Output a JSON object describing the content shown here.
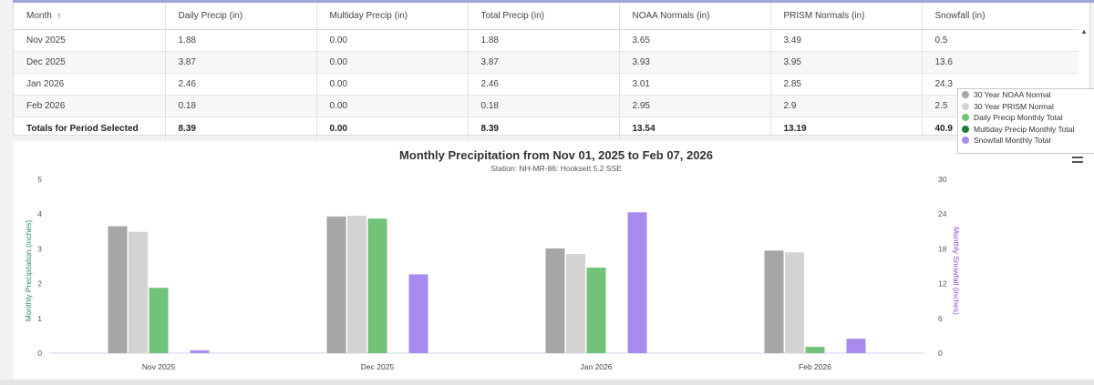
{
  "table": {
    "headers": [
      "Month",
      "Daily Precip (in)",
      "Multiday Precip (in)",
      "Total Precip (in)",
      "NOAA Normals (in)",
      "PRISM Normals (in)",
      "Snowfall (in)"
    ],
    "sort_indicator": "↑",
    "rows": [
      [
        "Nov 2025",
        "1.88",
        "0.00",
        "1.88",
        "3.65",
        "3.49",
        "0.5"
      ],
      [
        "Dec 2025",
        "3.87",
        "0.00",
        "3.87",
        "3.93",
        "3.95",
        "13.6"
      ],
      [
        "Jan 2026",
        "2.46",
        "0.00",
        "2.46",
        "3.01",
        "2.85",
        "24.3"
      ],
      [
        "Feb 2026",
        "0.18",
        "0.00",
        "0.18",
        "2.95",
        "2.9",
        "2.5"
      ]
    ],
    "totals": [
      "Totals for Period Selected",
      "8.39",
      "0.00",
      "8.39",
      "13.54",
      "13.19",
      "40.9"
    ]
  },
  "chart_data": {
    "type": "bar",
    "title": "Monthly Precipitation from Nov 01, 2025 to Feb 07, 2026",
    "subtitle": "Station: NH-MR-86: Hooksett 5.2 SSE",
    "categories": [
      "Nov 2025",
      "Dec 2025",
      "Jan 2026",
      "Feb 2026"
    ],
    "ylabel": "Monthly Precipitation (inches)",
    "y2label": "Monthly Snowfall (inches)",
    "ylim": [
      0,
      5
    ],
    "y2lim": [
      0,
      30
    ],
    "yticks": [
      "0",
      "1",
      "2",
      "3",
      "4",
      "5"
    ],
    "y2ticks": [
      "0",
      "6",
      "12",
      "18",
      "24",
      "30"
    ],
    "series": [
      {
        "name": "30 Year NOAA Normal",
        "axis": "left",
        "color": "#a6a6a6",
        "values": [
          3.65,
          3.93,
          3.01,
          2.95
        ]
      },
      {
        "name": "30 Year PRISM Normal",
        "axis": "left",
        "color": "#d3d3d3",
        "values": [
          3.49,
          3.95,
          2.85,
          2.9
        ]
      },
      {
        "name": "Daily Precip Monthly Total",
        "axis": "left",
        "color": "#72c27a",
        "values": [
          1.88,
          3.87,
          2.46,
          0.18
        ]
      },
      {
        "name": "Multiday Precip Monthly Total",
        "axis": "left",
        "color": "#1e7b34",
        "values": [
          0.0,
          0.0,
          0.0,
          0.0
        ]
      },
      {
        "name": "Snowfall Monthly Total",
        "axis": "right",
        "color": "#a98bf0",
        "values": [
          0.5,
          13.6,
          24.3,
          2.5
        ]
      }
    ],
    "legend_position": "right",
    "grid": false,
    "ylabel_color": "#2e8b57",
    "y2label_color": "#8a4fd8"
  }
}
